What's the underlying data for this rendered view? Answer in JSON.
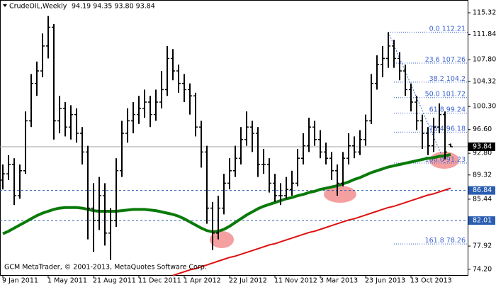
{
  "chart_data": {
    "type": "ohlc",
    "symbol": "CrudeOIL,Weekly",
    "quote": "94.19 94.35 93.80 93.84",
    "footer": "GCM MetaTrader, © 2001-2013, MetaQuotes Software Corp.",
    "categories": [
      "9 Jan 2011",
      null,
      null,
      null,
      null,
      null,
      null,
      null,
      "1 May 2011",
      null,
      null,
      null,
      null,
      null,
      null,
      null,
      "21 Aug 2011",
      null,
      null,
      null,
      null,
      null,
      null,
      null,
      "11 Dec 2011",
      null,
      null,
      null,
      null,
      null,
      null,
      null,
      "1 Apr 2012",
      null,
      null,
      null,
      null,
      null,
      null,
      null,
      "22 Jul 2012",
      null,
      null,
      null,
      null,
      null,
      null,
      null,
      "11 Nov 2012",
      null,
      null,
      null,
      null,
      null,
      null,
      null,
      "3 Mar 2013",
      null,
      null,
      null,
      null,
      null,
      null,
      null,
      "23 Jun 2013",
      null,
      null,
      null,
      null,
      null,
      null,
      null,
      "13 Oct 2013",
      null,
      null,
      null,
      null,
      null,
      null,
      null
    ],
    "open": [
      88.5,
      89.5,
      91,
      86,
      90,
      98,
      104,
      106,
      110,
      113,
      98,
      100,
      97,
      99,
      96,
      93,
      84,
      82,
      86,
      80,
      82,
      90,
      96,
      98,
      99,
      100,
      101,
      99,
      101,
      103,
      108,
      106,
      104,
      103,
      102,
      97,
      93,
      84,
      80,
      84,
      88,
      90,
      92,
      95,
      97,
      96,
      91,
      91,
      88,
      86,
      86,
      87,
      88,
      92,
      94,
      97,
      95,
      93,
      92,
      90,
      88,
      92,
      94,
      93,
      95,
      98,
      104,
      107,
      108,
      110,
      108,
      106,
      103,
      101,
      98,
      96,
      94,
      97,
      99,
      94.19
    ],
    "high": [
      91,
      92.5,
      92,
      91,
      99.5,
      105.5,
      107.5,
      112,
      114.8,
      113.5,
      102,
      101,
      100.5,
      100,
      97,
      94,
      88,
      89,
      88,
      84,
      92,
      98,
      100,
      101,
      102,
      103,
      102,
      103,
      106,
      110,
      109.5,
      107,
      105.5,
      104,
      102.5,
      98,
      94,
      85,
      86,
      89.5,
      92,
      94,
      97,
      99.5,
      98,
      97,
      93.5,
      92,
      89.5,
      88,
      89,
      90,
      93.5,
      96,
      98.5,
      98,
      96.5,
      94.5,
      93,
      91,
      93,
      96,
      95.5,
      96.5,
      99,
      105.5,
      108.5,
      110,
      112.2,
      111,
      109,
      107,
      104,
      102,
      99,
      97,
      98.5,
      100.8,
      99.5,
      94.35
    ],
    "low": [
      87,
      88.5,
      84.5,
      85.5,
      89.5,
      97,
      102,
      105,
      108,
      95,
      96,
      95.5,
      95,
      94.5,
      91,
      79,
      77,
      80.5,
      78,
      75.7,
      81,
      89,
      94.5,
      96,
      97.5,
      98.5,
      97,
      98,
      100,
      102,
      104.5,
      102.5,
      101,
      99,
      95.5,
      90.5,
      81.5,
      77.3,
      79,
      83,
      87,
      89,
      91,
      94,
      93,
      89,
      89.5,
      86.5,
      85,
      84.5,
      85.5,
      86,
      87.5,
      91,
      93,
      94,
      92,
      91,
      88.5,
      86,
      87.5,
      91,
      92,
      92.5,
      94,
      97.5,
      103,
      105,
      106.5,
      106.5,
      104.5,
      102,
      99.5,
      96.5,
      93.5,
      92.5,
      93,
      96,
      91.8,
      93.8
    ],
    "close": [
      89.5,
      91,
      86,
      90,
      98,
      104,
      106,
      110,
      113,
      98,
      100,
      97,
      99,
      96,
      93,
      84,
      82,
      86,
      80,
      82,
      90,
      96,
      98,
      99,
      100,
      101,
      99,
      101,
      103,
      108,
      106,
      104,
      103,
      102,
      97,
      93,
      84,
      80,
      84,
      88,
      90,
      92,
      95,
      97,
      96,
      91,
      91,
      88,
      86,
      86,
      87,
      88,
      92,
      94,
      97,
      95,
      93,
      92,
      90,
      88,
      92,
      94,
      93,
      95,
      98,
      104,
      107,
      108,
      110,
      108,
      106,
      103,
      101,
      98,
      96,
      94,
      97,
      99,
      93,
      93.84
    ],
    "bar_color": "#000000",
    "ma": {
      "color": "#0a7a0a",
      "values": [
        79.9,
        80.3,
        80.8,
        81.3,
        81.8,
        82.3,
        82.8,
        83.2,
        83.5,
        83.8,
        84.0,
        84.1,
        84.1,
        84.1,
        84.0,
        83.8,
        83.6,
        83.5,
        83.5,
        83.5,
        83.5,
        83.6,
        83.7,
        83.8,
        83.8,
        83.8,
        83.7,
        83.6,
        83.4,
        83.2,
        83.0,
        82.7,
        82.3,
        81.8,
        81.3,
        80.8,
        80.4,
        80.2,
        80.3,
        80.6,
        81.1,
        81.7,
        82.3,
        82.9,
        83.4,
        83.9,
        84.3,
        84.6,
        84.9,
        85.2,
        85.5,
        85.7,
        86.0,
        86.2,
        86.5,
        86.7,
        87.0,
        87.2,
        87.4,
        87.6,
        87.9,
        88.2,
        88.6,
        88.9,
        89.3,
        89.7,
        90.0,
        90.3,
        90.6,
        90.8,
        91.0,
        91.2,
        91.4,
        91.6,
        91.8,
        92.0,
        92.1,
        92.3,
        92.4,
        92.6
      ]
    },
    "trendline": {
      "color": "#e01010",
      "values": [
        null,
        null,
        null,
        null,
        null,
        null,
        null,
        null,
        null,
        null,
        null,
        null,
        null,
        null,
        null,
        null,
        null,
        null,
        null,
        null,
        null,
        null,
        null,
        null,
        null,
        null,
        null,
        null,
        null,
        null,
        73.2,
        73.5,
        73.8,
        74.1,
        74.3,
        74.6,
        74.9,
        75.2,
        75.5,
        75.8,
        76.1,
        76.3,
        76.6,
        76.9,
        77.2,
        77.5,
        77.8,
        78.1,
        78.3,
        78.6,
        78.9,
        79.2,
        79.5,
        79.8,
        80.1,
        80.3,
        80.6,
        80.9,
        81.2,
        81.5,
        81.8,
        82.1,
        82.3,
        82.6,
        82.9,
        83.2,
        83.5,
        83.8,
        84.1,
        84.3,
        84.6,
        84.9,
        85.2,
        85.5,
        85.8,
        86.1,
        86.3,
        86.6,
        86.9,
        87.2
      ]
    },
    "levels": [
      86.84,
      82.01
    ],
    "level_color": "#2a5db0",
    "fib": [
      {
        "ratio": "0.0",
        "price": 112.21
      },
      {
        "ratio": "23.6",
        "price": 107.26
      },
      {
        "ratio": "38.2",
        "price": 104.2
      },
      {
        "ratio": "50.0",
        "price": 101.72
      },
      {
        "ratio": "61.8",
        "price": 99.24
      },
      {
        "ratio": "76.4",
        "price": 96.18
      },
      {
        "ratio": "100.0",
        "price": 91.23
      },
      {
        "ratio": "161.8",
        "price": 78.26
      }
    ],
    "fib_color": "#3a62d0",
    "ylim": [
      73.27,
      117.37
    ],
    "yticks": [
      115.32,
      111.84,
      {
        "value": 107.8,
        "label": "107.80"
      },
      104.32,
      {
        "value": 100.3,
        "label": "100.30"
      },
      {
        "value": 96.6,
        "label": "96.60"
      },
      {
        "value": 92.8,
        "label": "92.80"
      },
      89.32,
      85.44,
      81.96,
      77.92,
      {
        "value": 74.2,
        "label": "74.20"
      }
    ]
  }
}
